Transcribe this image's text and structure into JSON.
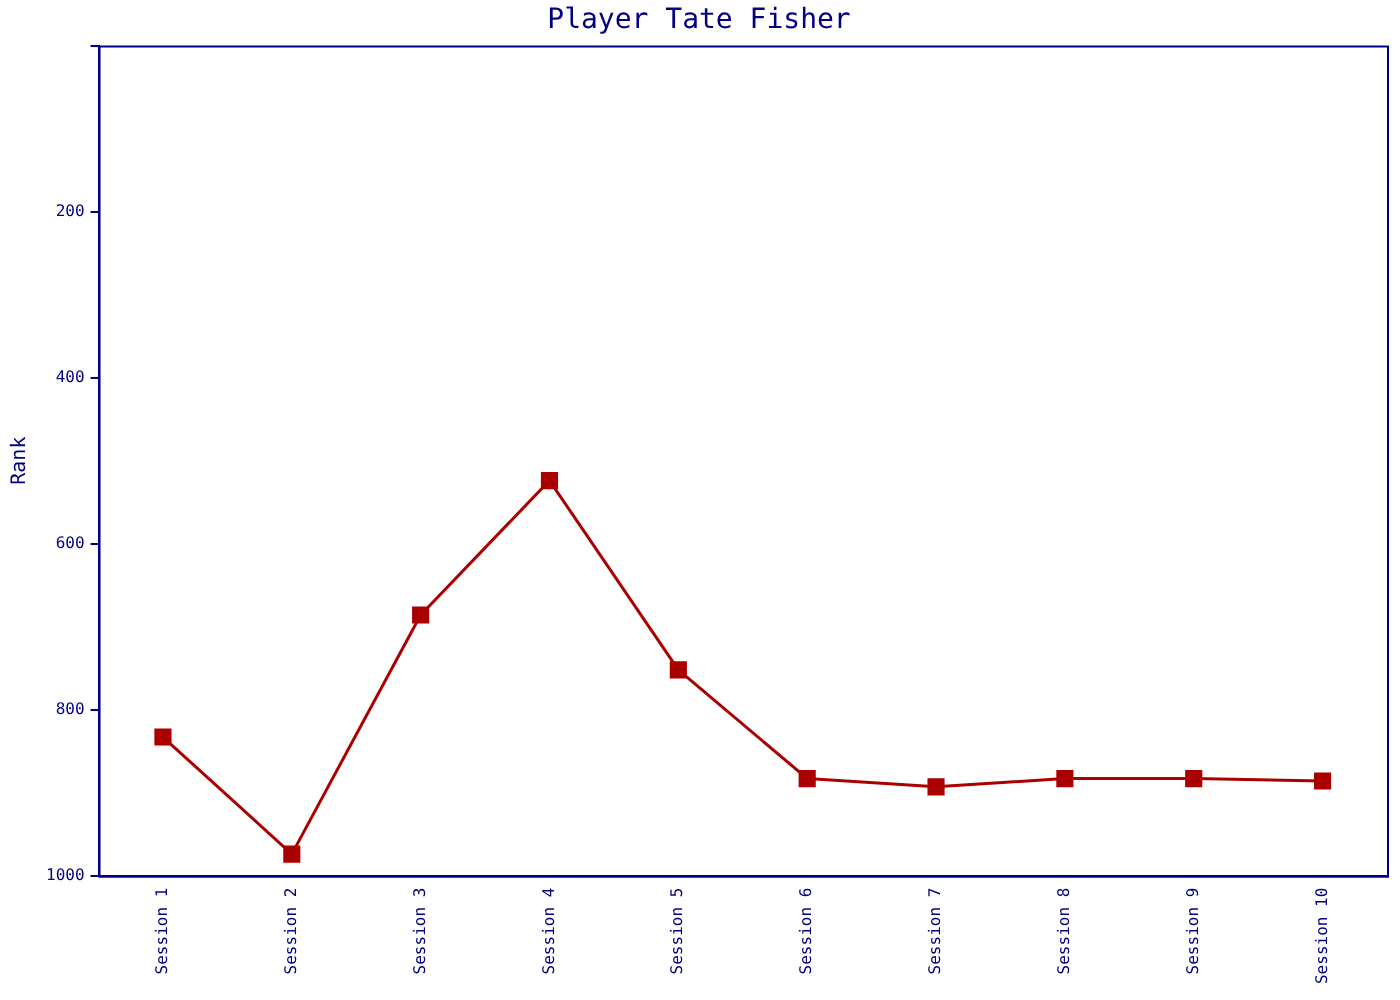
{
  "chart_data": {
    "type": "line",
    "title": "Player Tate Fisher",
    "ylabel": "Rank",
    "categories": [
      "Session 1",
      "Session 2",
      "Session 3",
      "Session 4",
      "Session 5",
      "Session 6",
      "Session 7",
      "Session 8",
      "Session 9",
      "Session 10"
    ],
    "series": [
      {
        "color": "#aa0000",
        "values": [
          833,
          974,
          686,
          524,
          752,
          883,
          893,
          883,
          883,
          886
        ]
      }
    ],
    "ylim": [
      1000,
      0
    ],
    "yticks": [
      {
        "value": 0,
        "label": null
      },
      200,
      400,
      600,
      800,
      1000
    ],
    "grid": false,
    "legend": false,
    "marker": "square",
    "line_style": "solid"
  }
}
